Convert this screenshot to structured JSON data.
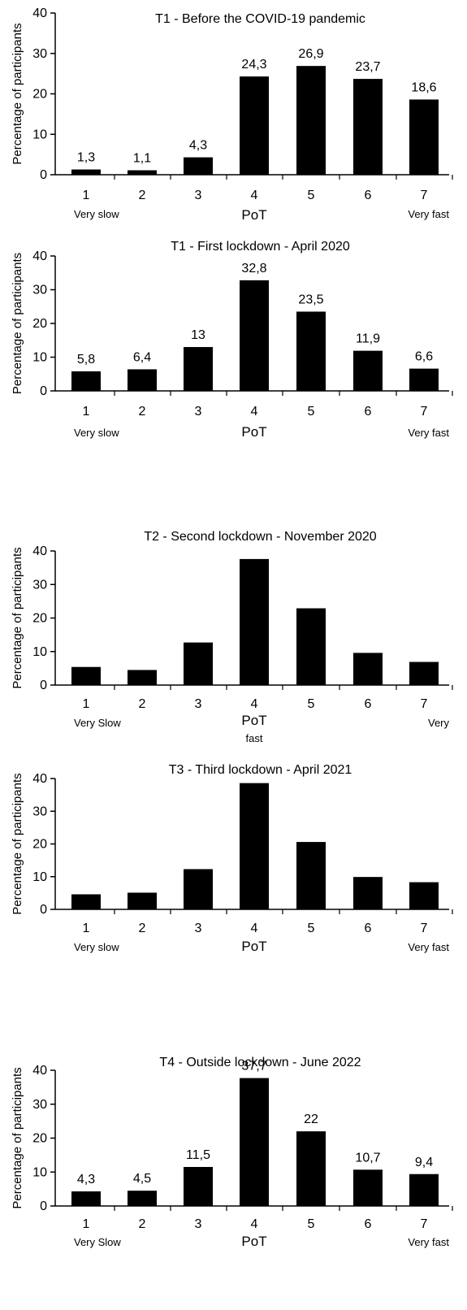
{
  "chart_data": [
    {
      "type": "bar",
      "title": "T1 - Before the COVID-19 pandemic",
      "categories": [
        "1",
        "2",
        "3",
        "4",
        "5",
        "6",
        "7"
      ],
      "values": [
        1.3,
        1.1,
        4.3,
        24.3,
        26.9,
        23.7,
        18.6
      ],
      "data_labels": [
        "1,3",
        "1,1",
        "4,3",
        "24,3",
        "26,9",
        "23,7",
        "18,6"
      ],
      "ylim": [
        0,
        40
      ],
      "yticks": [
        "0",
        "10",
        "20",
        "30",
        "40"
      ],
      "ylabel": "Percentage of participants",
      "xlabel": "PoT",
      "left_label": "Very slow",
      "right_label": "Very fast",
      "right_label_2": "",
      "grid": false
    },
    {
      "type": "bar",
      "title": "T1 - First lockdown - April 2020",
      "categories": [
        "1",
        "2",
        "3",
        "4",
        "5",
        "6",
        "7"
      ],
      "values": [
        5.8,
        6.4,
        13,
        32.8,
        23.5,
        11.9,
        6.6
      ],
      "data_labels": [
        "5,8",
        "6,4",
        "13",
        "32,8",
        "23,5",
        "11,9",
        "6,6"
      ],
      "ylim": [
        0,
        40
      ],
      "yticks": [
        "0",
        "10",
        "20",
        "30",
        "40"
      ],
      "ylabel": "Percentage of participants",
      "xlabel": "PoT",
      "left_label": "Very slow",
      "right_label": "Very fast",
      "right_label_2": "",
      "grid": false
    },
    {
      "type": "bar",
      "title": "T2 - Second lockdown - November 2020",
      "categories": [
        "1",
        "2",
        "3",
        "4",
        "5",
        "6",
        "7"
      ],
      "values": [
        5.4,
        4.5,
        12.7,
        37.6,
        22.9,
        9.6,
        6.9
      ],
      "data_labels": [],
      "ylim": [
        0,
        40
      ],
      "yticks": [
        "0",
        "10",
        "20",
        "30",
        "40"
      ],
      "ylabel": "Percentage of participants",
      "xlabel": "PoT",
      "left_label": "Very Slow",
      "right_label": "Very",
      "right_label_2": "fast",
      "grid": false
    },
    {
      "type": "bar",
      "title": "T3 - Third lockdown - April 2021",
      "categories": [
        "1",
        "2",
        "3",
        "4",
        "5",
        "6",
        "7"
      ],
      "values": [
        4.6,
        5.1,
        12.3,
        38.6,
        20.6,
        9.9,
        8.3
      ],
      "data_labels": [],
      "ylim": [
        0,
        40
      ],
      "yticks": [
        "0",
        "10",
        "20",
        "30",
        "40"
      ],
      "ylabel": "Percentage of participants",
      "xlabel": "PoT",
      "left_label": "Very slow",
      "right_label": "Very fast",
      "right_label_2": "",
      "grid": false
    },
    {
      "type": "bar",
      "title": "T4 - Outside lockdown - June 2022",
      "categories": [
        "1",
        "2",
        "3",
        "4",
        "5",
        "6",
        "7"
      ],
      "values": [
        4.3,
        4.5,
        11.5,
        37.7,
        22,
        10.7,
        9.4
      ],
      "data_labels": [
        "4,3",
        "4,5",
        "11,5",
        "37,7",
        "22",
        "10,7",
        "9,4"
      ],
      "ylim": [
        0,
        40
      ],
      "yticks": [
        "0",
        "10",
        "20",
        "30",
        "40"
      ],
      "ylabel": "Percentage of participants",
      "xlabel": "PoT",
      "left_label": "Very Slow",
      "right_label": "Very fast",
      "right_label_2": "",
      "grid": false
    }
  ]
}
